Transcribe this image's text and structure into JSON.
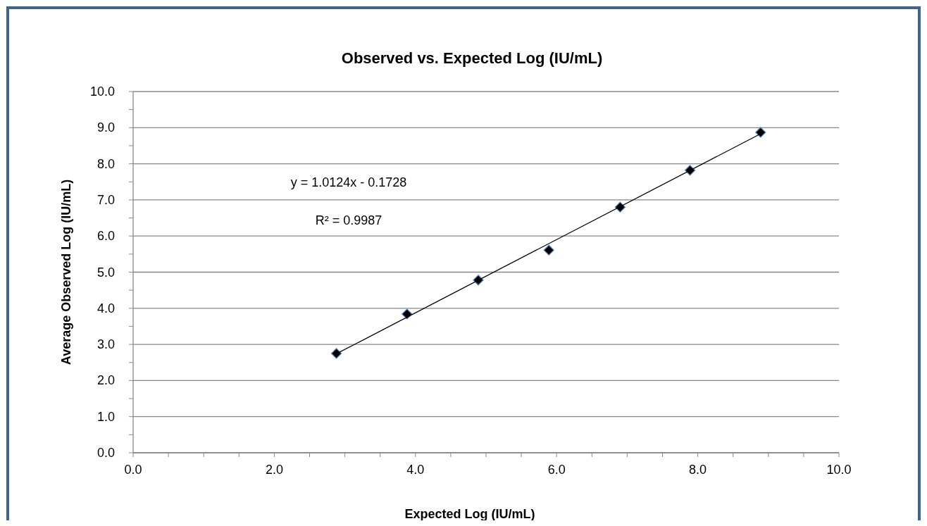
{
  "chart_data": {
    "type": "scatter",
    "title": "Observed vs. Expected Log (IU/mL)",
    "xlabel": "Expected Log (IU/mL)",
    "ylabel": "Average Observed Log  (IU/mL)",
    "xlim": [
      0,
      10
    ],
    "ylim": [
      0,
      10
    ],
    "xticks": [
      {
        "value": 0,
        "label": "0.0"
      },
      {
        "value": 0.5,
        "label": null
      },
      {
        "value": 1,
        "label": null
      },
      {
        "value": 1.5,
        "label": null
      },
      {
        "value": 2,
        "label": "2.0"
      },
      {
        "value": 2.5,
        "label": null
      },
      {
        "value": 3,
        "label": null
      },
      {
        "value": 3.5,
        "label": null
      },
      {
        "value": 4,
        "label": "4.0"
      },
      {
        "value": 4.5,
        "label": null
      },
      {
        "value": 5,
        "label": null
      },
      {
        "value": 5.5,
        "label": null
      },
      {
        "value": 6,
        "label": "6.0"
      },
      {
        "value": 6.5,
        "label": null
      },
      {
        "value": 7,
        "label": null
      },
      {
        "value": 7.5,
        "label": null
      },
      {
        "value": 8,
        "label": "8.0"
      },
      {
        "value": 8.5,
        "label": null
      },
      {
        "value": 9,
        "label": null
      },
      {
        "value": 9.5,
        "label": null
      },
      {
        "value": 10,
        "label": "10.0"
      }
    ],
    "yticks": [
      {
        "value": 0,
        "label": "0.0"
      },
      {
        "value": 0.5,
        "label": null
      },
      {
        "value": 1,
        "label": "1.0"
      },
      {
        "value": 1.5,
        "label": null
      },
      {
        "value": 2,
        "label": "2.0"
      },
      {
        "value": 2.5,
        "label": null
      },
      {
        "value": 3,
        "label": "3.0"
      },
      {
        "value": 3.5,
        "label": null
      },
      {
        "value": 4,
        "label": "4.0"
      },
      {
        "value": 4.5,
        "label": null
      },
      {
        "value": 5,
        "label": "5.0"
      },
      {
        "value": 5.5,
        "label": null
      },
      {
        "value": 6,
        "label": "6.0"
      },
      {
        "value": 6.5,
        "label": null
      },
      {
        "value": 7,
        "label": "7.0"
      },
      {
        "value": 7.5,
        "label": null
      },
      {
        "value": 8,
        "label": "8.0"
      },
      {
        "value": 8.5,
        "label": null
      },
      {
        "value": 9,
        "label": "9.0"
      },
      {
        "value": 9.5,
        "label": null
      },
      {
        "value": 10,
        "label": "10.0"
      }
    ],
    "grid": "y",
    "marker": "diamond",
    "series": [
      {
        "color": "#000000",
        "x": [
          2.88,
          3.88,
          4.89,
          5.89,
          6.9,
          7.89,
          8.89
        ],
        "values": [
          2.75,
          3.84,
          4.78,
          5.61,
          6.8,
          7.82,
          8.87
        ]
      },
      {
        "type": "line",
        "color": "#000000",
        "line_style": "solid",
        "marker": "none",
        "x": [
          2.88,
          8.89
        ],
        "values": [
          2.74,
          8.83
        ]
      }
    ],
    "annotations": [
      "y = 1.0124x - 0.1728",
      "R² = 0.9987"
    ]
  }
}
